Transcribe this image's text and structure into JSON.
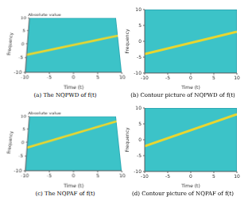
{
  "chart_data": [
    {
      "type": "line",
      "title": "(a) The NQPWD of f(t)",
      "x_label": "Time (t)",
      "y_label": "Frequency",
      "z_label": "Absolute value",
      "xlim": [
        -10,
        10
      ],
      "ylim": [
        -10,
        10
      ],
      "xticks": [
        -10,
        -5,
        0,
        5,
        10
      ],
      "yticks": [
        -10,
        -5,
        0,
        5,
        10
      ],
      "x": [
        -10,
        10
      ],
      "values": [
        -4,
        3
      ],
      "color": "#e8d630"
    },
    {
      "type": "line",
      "title": "(b) Contour picture of NQPWD of f(t)",
      "x_label": "Time (t)",
      "y_label": "Frequency",
      "xlim": [
        -10,
        10
      ],
      "ylim": [
        -10,
        10
      ],
      "xticks": [
        -10,
        -5,
        0,
        5,
        10
      ],
      "yticks": [
        -10,
        -5,
        0,
        5,
        10
      ],
      "x": [
        -10,
        10
      ],
      "values": [
        -4,
        3
      ],
      "color": "#e8d630"
    },
    {
      "type": "line",
      "title": "(c) The NQPAF of f(t)",
      "x_label": "Time (t)",
      "y_label": "Frequency",
      "z_label": "Absolute value",
      "xlim": [
        -10,
        10
      ],
      "ylim": [
        -10,
        10
      ],
      "xticks": [
        -10,
        -5,
        0,
        5,
        10
      ],
      "yticks": [
        -10,
        -5,
        0,
        5,
        10
      ],
      "x": [
        -10,
        10
      ],
      "values": [
        -2,
        8
      ],
      "color": "#e8d630"
    },
    {
      "type": "line",
      "title": "(d) Contour picture of NQPAF of f(t)",
      "x_label": "Time (t)",
      "y_label": "Frequency",
      "xlim": [
        -10,
        10
      ],
      "ylim": [
        -10,
        10
      ],
      "xticks": [
        -10,
        -5,
        0,
        5,
        10
      ],
      "yticks": [
        -10,
        -5,
        0,
        5,
        10
      ],
      "x": [
        -10,
        10
      ],
      "values": [
        -2,
        8
      ],
      "color": "#e8d630"
    }
  ]
}
